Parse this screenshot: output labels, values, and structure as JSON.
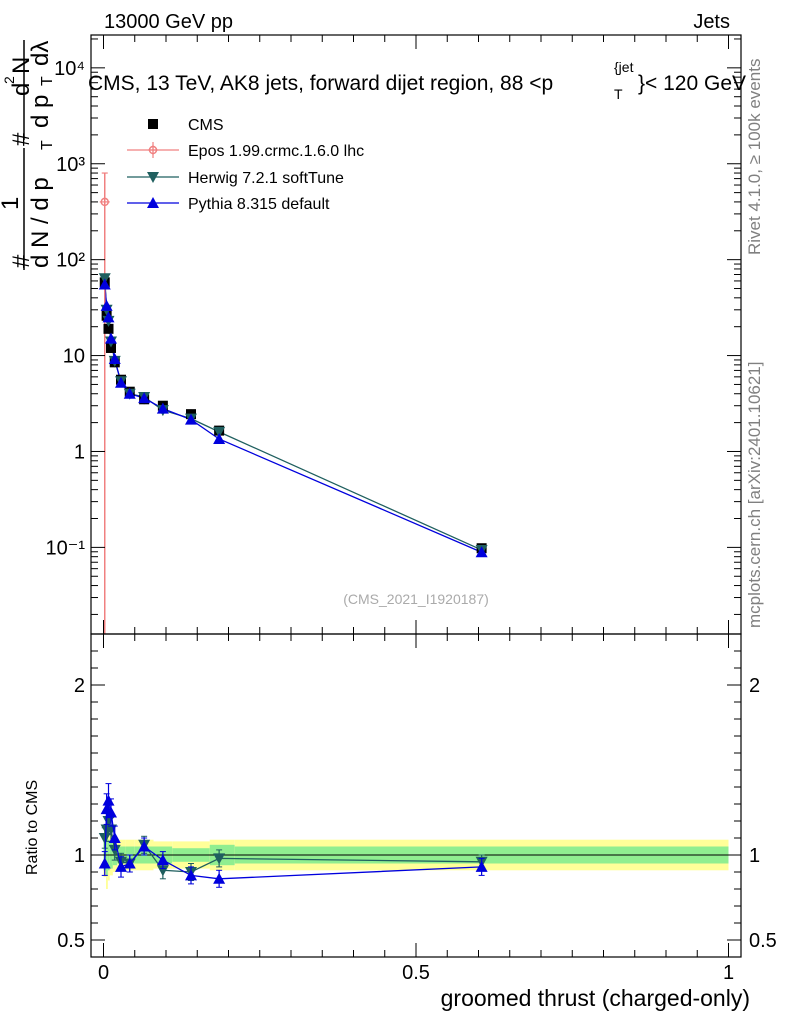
{
  "header": {
    "left": "13000 GeV pp",
    "right": "Jets"
  },
  "title": "CMS, 13 TeV, AK8 jets, forward dijet region, 88 <p",
  "title_sup": "{jet",
  "title_sub": "T",
  "title_tail": "}< 120 GeV",
  "ylabel": {
    "num1": "1",
    "den1": "d N / d p",
    "den1_sub": "T",
    "hash1": "#",
    "num2a": "#",
    "den2": "d p",
    "den2_sub": "T",
    "num2b": "d",
    "dN": "d",
    "dN_sup": "2",
    "dN_N": "N",
    "dlam": "dλ"
  },
  "ratio_ylabel": "Ratio to CMS",
  "xlabel": "groomed thrust (charged-only)",
  "analysis_tag": "(CMS_2021_I1920187)",
  "side_rivet": "Rivet 4.1.0, ≥ 100k events",
  "side_mcplots": "mcplots.cern.ch [arXiv:2401.10621]",
  "colors": {
    "cms": "#000000",
    "epos": "#f08080",
    "herwig": "#1f5f5f",
    "pythia": "#0000dd",
    "band_inner": "#90ee90",
    "band_outer": "#ffff99"
  },
  "chart_data": {
    "type": "scatter",
    "main": {
      "yscale": "log",
      "ylim": [
        0.0125,
        22000
      ],
      "xlim": [
        -0.02,
        1.02
      ],
      "ytick_labels": [
        "10⁻¹",
        "1",
        "10",
        "10²",
        "10³",
        "10⁴"
      ],
      "ytick_values": [
        0.1,
        1,
        10,
        100,
        1000,
        10000
      ],
      "series": [
        {
          "name": "CMS",
          "x": [
            0.002,
            0.005,
            0.008,
            0.012,
            0.018,
            0.028,
            0.042,
            0.065,
            0.095,
            0.14,
            0.185,
            0.605
          ],
          "y": [
            58,
            26,
            19,
            12,
            8.5,
            5.6,
            4.2,
            3.5,
            3.0,
            2.45,
            1.65,
            0.098
          ]
        },
        {
          "name": "Epos 1.99.crmc.1.6.0 lhc",
          "x": [
            0.002
          ],
          "y": [
            400
          ],
          "yerr_lo": [
            0.0125
          ],
          "yerr_hi": [
            800
          ]
        },
        {
          "name": "Herwig 7.2.1 softTune",
          "x": [
            0.002,
            0.005,
            0.008,
            0.012,
            0.018,
            0.028,
            0.042,
            0.065,
            0.095,
            0.14,
            0.185,
            0.605
          ],
          "y": [
            64,
            30,
            23,
            14,
            8.8,
            5.4,
            4.0,
            3.7,
            2.7,
            2.2,
            1.6,
            0.094
          ]
        },
        {
          "name": "Pythia 8.315 default",
          "x": [
            0.002,
            0.005,
            0.008,
            0.012,
            0.018,
            0.028,
            0.042,
            0.065,
            0.095,
            0.14,
            0.185,
            0.605
          ],
          "y": [
            55,
            33,
            25,
            15,
            9.2,
            5.2,
            4.0,
            3.6,
            2.8,
            2.15,
            1.35,
            0.089
          ]
        }
      ]
    },
    "ratio": {
      "ylim": [
        0.4,
        2.3
      ],
      "ytick_labels": [
        "0.5",
        "1",
        "2"
      ],
      "ytick_values": [
        0.5,
        1,
        2
      ],
      "xtick_labels": [
        "0",
        "0.5",
        "1"
      ],
      "xtick_values": [
        0,
        0.5,
        1
      ],
      "band_edges": [
        0,
        0.004,
        0.007,
        0.01,
        0.015,
        0.022,
        0.035,
        0.05,
        0.08,
        0.11,
        0.17,
        0.21,
        1.0
      ],
      "band_inner": [
        0.09,
        0.12,
        0.09,
        0.08,
        0.06,
        0.05,
        0.05,
        0.05,
        0.05,
        0.04,
        0.06,
        0.05
      ],
      "band_outer": [
        0.13,
        0.2,
        0.15,
        0.12,
        0.1,
        0.09,
        0.09,
        0.09,
        0.08,
        0.08,
        0.09,
        0.09
      ],
      "series": [
        {
          "name": "Herwig 7.2.1 softTune",
          "x": [
            0.002,
            0.005,
            0.008,
            0.012,
            0.018,
            0.028,
            0.042,
            0.065,
            0.095,
            0.14,
            0.185,
            0.605
          ],
          "y": [
            1.1,
            1.15,
            1.2,
            1.15,
            1.03,
            0.96,
            0.95,
            1.06,
            0.91,
            0.9,
            0.98,
            0.96
          ],
          "err": [
            0.06,
            0.07,
            0.08,
            0.07,
            0.06,
            0.05,
            0.05,
            0.05,
            0.05,
            0.05,
            0.05,
            0.04
          ]
        },
        {
          "name": "Pythia 8.315 default",
          "x": [
            0.002,
            0.005,
            0.008,
            0.012,
            0.018,
            0.028,
            0.042,
            0.065,
            0.095,
            0.14,
            0.185,
            0.605
          ],
          "y": [
            0.95,
            1.27,
            1.32,
            1.25,
            1.1,
            0.93,
            0.95,
            1.05,
            0.97,
            0.88,
            0.86,
            0.93
          ],
          "err": [
            0.07,
            0.09,
            0.1,
            0.08,
            0.07,
            0.06,
            0.05,
            0.05,
            0.05,
            0.05,
            0.05,
            0.05
          ]
        }
      ]
    }
  }
}
